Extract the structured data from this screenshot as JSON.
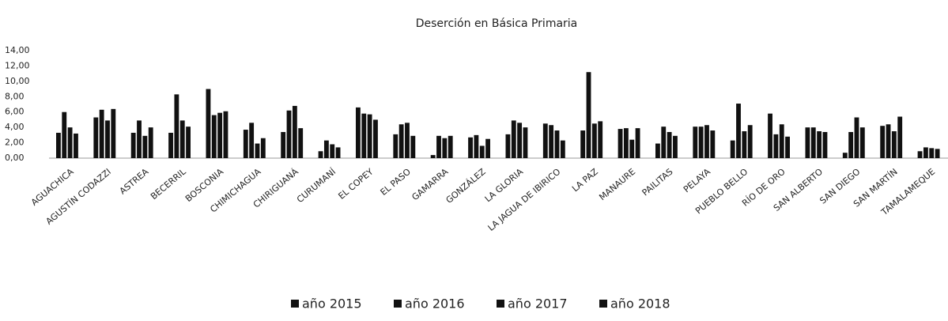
{
  "chart_data": {
    "type": "bar",
    "title": "Deserción en Básica Primaria",
    "categories": [
      "AGUACHICA",
      "AGUSTÍN CODAZZI",
      "ASTREA",
      "BECERRIL",
      "BOSCONIA",
      "CHIMICHAGUA",
      "CHIRIGUANÁ",
      "CURUMANÍ",
      "EL COPEY",
      "EL PASO",
      "GAMARRA",
      "GONZÁLEZ",
      "LA GLORIA",
      "LA JAGUA DE IBIRICO",
      "LA PAZ",
      "MANAURE",
      "PAILITAS",
      "PELAYA",
      "PUEBLO BELLO",
      "RÍO DE ORO",
      "SAN ALBERTO",
      "SAN DIEGO",
      "SAN MARTÍN",
      "TAMALAMEQUE"
    ],
    "series": [
      {
        "name": "año 2015",
        "color": "#111111",
        "values": [
          3.3,
          5.3,
          3.3,
          3.3,
          9.0,
          3.7,
          3.4,
          0.9,
          6.6,
          3.1,
          0.4,
          2.7,
          3.1,
          4.5,
          3.6,
          3.8,
          1.9,
          4.1,
          2.3,
          5.8,
          4.0,
          0.7,
          4.2,
          0.9
        ]
      },
      {
        "name": "año 2016",
        "color": "#111111",
        "values": [
          6.0,
          6.3,
          4.9,
          8.3,
          5.6,
          4.6,
          6.2,
          2.3,
          5.8,
          4.4,
          2.9,
          3.0,
          4.9,
          4.3,
          11.2,
          3.9,
          4.1,
          4.1,
          7.1,
          3.1,
          4.0,
          3.4,
          4.4,
          1.4
        ]
      },
      {
        "name": "año 2017",
        "color": "#111111",
        "values": [
          4.0,
          4.9,
          2.9,
          4.9,
          5.9,
          1.9,
          6.8,
          1.8,
          5.7,
          4.6,
          2.6,
          1.6,
          4.6,
          3.6,
          4.5,
          2.4,
          3.4,
          4.3,
          3.5,
          4.4,
          3.5,
          5.3,
          3.5,
          1.3
        ]
      },
      {
        "name": "año 2018",
        "color": "#111111",
        "values": [
          3.2,
          6.4,
          4.0,
          4.1,
          6.1,
          2.6,
          3.9,
          1.4,
          5.0,
          2.9,
          2.9,
          2.5,
          4.0,
          2.3,
          4.8,
          3.9,
          2.9,
          3.6,
          4.3,
          2.8,
          3.4,
          4.0,
          5.4,
          1.2
        ]
      }
    ],
    "ylim": [
      0,
      14
    ],
    "yticks": [
      {
        "value": 0,
        "label": "0,00"
      },
      {
        "value": 2,
        "label": "2,00"
      },
      {
        "value": 4,
        "label": "4,00"
      },
      {
        "value": 6,
        "label": "6,00"
      },
      {
        "value": 8,
        "label": "8,00"
      },
      {
        "value": 10,
        "label": "10,00"
      },
      {
        "value": 12,
        "label": "12,00"
      },
      {
        "value": 14,
        "label": "14,00"
      }
    ],
    "grid": false,
    "legend": "bottom"
  }
}
